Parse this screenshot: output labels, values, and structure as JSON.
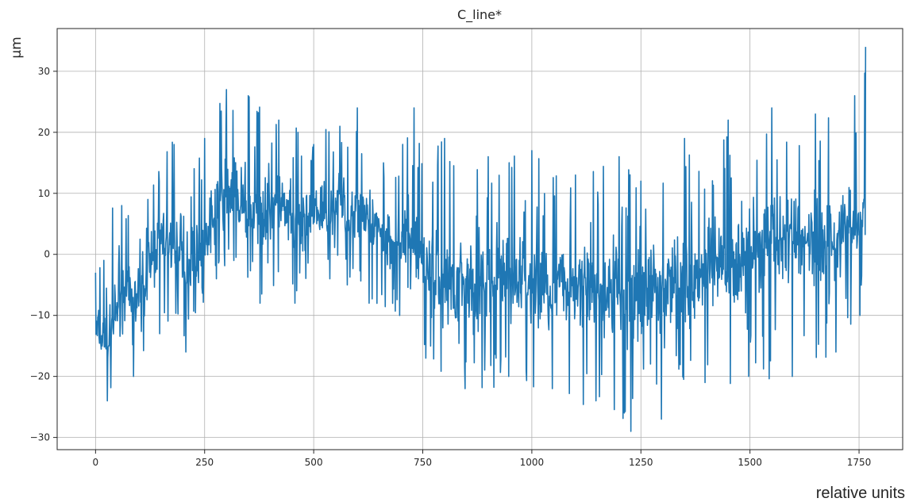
{
  "chart_data": {
    "type": "line",
    "title": "C_line*",
    "xlabel": "relative units",
    "ylabel": "µm",
    "xlim": [
      -88,
      1850
    ],
    "ylim": [
      -32,
      37
    ],
    "x_ticks": [
      0,
      250,
      500,
      750,
      1000,
      1250,
      1500,
      1750
    ],
    "x_tick_labels": [
      "0",
      "250",
      "500",
      "750",
      "1000",
      "1250",
      "1500",
      "1750"
    ],
    "y_ticks": [
      -30,
      -20,
      -10,
      0,
      10,
      20,
      30
    ],
    "y_tick_labels": [
      "−30",
      "−20",
      "−10",
      "0",
      "10",
      "20",
      "30"
    ],
    "grid": true,
    "legend": "none",
    "line_color": "#1f77b4",
    "series": [
      {
        "x": [
          0,
          30,
          60,
          90,
          120,
          150,
          180,
          210,
          250,
          280,
          300,
          320,
          350,
          380,
          420,
          460,
          500,
          540,
          560,
          580,
          600,
          630,
          660,
          700,
          730,
          760,
          800,
          850,
          900,
          950,
          1000,
          1050,
          1100,
          1150,
          1200,
          1230,
          1250,
          1300,
          1350,
          1400,
          1450,
          1500,
          1550,
          1600,
          1650,
          1700,
          1740,
          1755,
          1765
        ],
        "y": [
          -13,
          -15,
          -5,
          -8,
          -3,
          3,
          1,
          -2,
          2,
          7,
          10,
          9,
          6,
          7,
          8,
          3,
          6,
          7,
          9,
          5,
          8,
          4,
          3,
          2,
          2,
          -3,
          -5,
          -4,
          -6,
          -4,
          -5,
          -6,
          -4,
          -7,
          -6,
          -8,
          -6,
          -5,
          -5,
          -4,
          -3,
          1,
          2,
          3,
          2,
          3,
          4,
          5,
          10
        ],
        "max": [
          -3,
          8,
          8,
          5,
          9,
          21,
          18,
          15,
          19,
          25,
          27,
          29,
          26,
          24,
          22,
          22,
          18,
          25,
          21,
          25,
          24,
          18,
          15,
          18,
          24,
          17,
          19,
          14,
          16,
          24,
          17,
          15,
          13,
          14,
          16,
          14,
          12,
          16,
          19,
          18,
          22,
          25,
          24,
          21,
          23,
          24,
          26,
          17,
          34
        ],
        "min": [
          -17,
          -24,
          -17,
          -20,
          -16,
          -13,
          -11,
          -16,
          -8,
          -4,
          -2,
          -1,
          -4,
          -8,
          -6,
          -8,
          -4,
          -4,
          -3,
          -5,
          -4,
          -8,
          -9,
          -10,
          -12,
          -17,
          -21,
          -22,
          -24,
          -20,
          -22,
          -22,
          -26,
          -24,
          -27,
          -29,
          -26,
          -27,
          -23,
          -21,
          -22,
          -20,
          -22,
          -20,
          -18,
          -16,
          -14,
          -10,
          -5
        ]
      }
    ]
  }
}
